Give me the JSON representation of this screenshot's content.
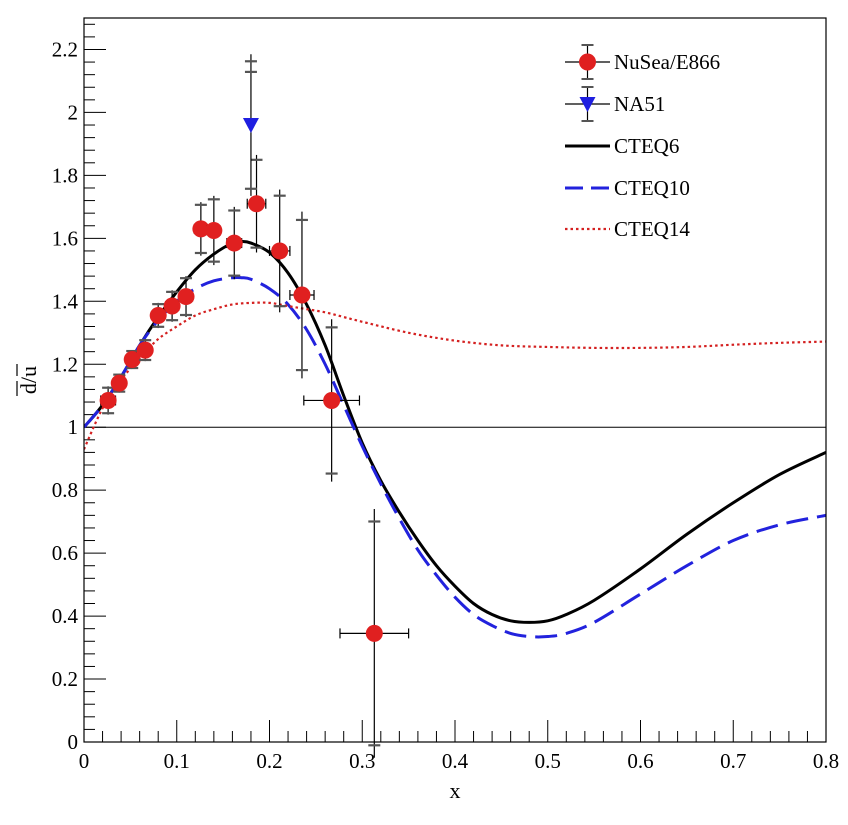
{
  "chart_data": {
    "type": "scatter",
    "title": "",
    "xlabel": "x",
    "ylabel": "d/u",
    "xlim": [
      0,
      0.8
    ],
    "ylim": [
      0,
      2.3
    ],
    "reference_line_y": 1,
    "x_ticks": [
      0,
      0.1,
      0.2,
      0.3,
      0.4,
      0.5,
      0.6,
      0.7,
      0.8
    ],
    "x_tick_labels": [
      "0",
      "0.1",
      "0.2",
      "0.3",
      "0.4",
      "0.5",
      "0.6",
      "0.7",
      "0.8"
    ],
    "y_ticks": [
      0,
      0.2,
      0.4,
      0.6,
      0.8,
      1.0,
      1.2,
      1.4,
      1.6,
      1.8,
      2.0,
      2.2
    ],
    "y_tick_labels": [
      "0",
      "0.2",
      "0.4",
      "0.6",
      "0.8",
      "1",
      "1.2",
      "1.4",
      "1.6",
      "1.8",
      "2",
      "2.2"
    ],
    "legend_position": "top-right",
    "colors": {
      "nusea": "#e02020",
      "na51": "#1f1fe0",
      "cteq6": "#000000",
      "cteq10": "#2222dd",
      "cteq14": "#d42020",
      "errorbar": "#000000",
      "syst": "#555555"
    },
    "series": [
      {
        "name": "NuSea/E866",
        "kind": "points",
        "marker": "circle",
        "color": "#e02020",
        "points": [
          {
            "x": 0.026,
            "y": 1.085,
            "xerr": 0.008,
            "yerr": 0.045
          },
          {
            "x": 0.038,
            "y": 1.14,
            "xerr": 0.005,
            "yerr": 0.03
          },
          {
            "x": 0.052,
            "y": 1.215,
            "xerr": 0.006,
            "yerr": 0.03
          },
          {
            "x": 0.066,
            "y": 1.245,
            "xerr": 0.006,
            "yerr": 0.035
          },
          {
            "x": 0.08,
            "y": 1.355,
            "xerr": 0.006,
            "yerr": 0.04
          },
          {
            "x": 0.095,
            "y": 1.385,
            "xerr": 0.007,
            "yerr": 0.05
          },
          {
            "x": 0.11,
            "y": 1.415,
            "xerr": 0.007,
            "yerr": 0.065
          },
          {
            "x": 0.126,
            "y": 1.63,
            "xerr": 0.007,
            "yerr": 0.085
          },
          {
            "x": 0.14,
            "y": 1.625,
            "xerr": 0.007,
            "yerr": 0.11
          },
          {
            "x": 0.162,
            "y": 1.585,
            "xerr": 0.008,
            "yerr": 0.115
          },
          {
            "x": 0.186,
            "y": 1.71,
            "xerr": 0.01,
            "yerr": 0.155
          },
          {
            "x": 0.211,
            "y": 1.56,
            "xerr": 0.011,
            "yerr": 0.195
          },
          {
            "x": 0.235,
            "y": 1.42,
            "xerr": 0.013,
            "yerr": 0.265
          },
          {
            "x": 0.267,
            "y": 1.085,
            "xerr": 0.03,
            "yerr": 0.258
          },
          {
            "x": 0.313,
            "y": 0.345,
            "xerr": 0.037,
            "yerr": 0.395
          }
        ]
      },
      {
        "name": "NA51",
        "kind": "points",
        "marker": "triangle-down",
        "color": "#1f1fe0",
        "points": [
          {
            "x": 0.18,
            "y": 1.96,
            "xerr": 0.0,
            "yerr": 0.225
          }
        ]
      },
      {
        "name": "CTEQ6",
        "kind": "line",
        "style": "solid",
        "color": "#000000",
        "x": [
          0.0,
          0.02,
          0.04,
          0.06,
          0.08,
          0.1,
          0.12,
          0.14,
          0.16,
          0.17,
          0.18,
          0.2,
          0.22,
          0.24,
          0.26,
          0.28,
          0.3,
          0.32,
          0.34,
          0.36,
          0.38,
          0.4,
          0.42,
          0.44,
          0.46,
          0.48,
          0.5,
          0.52,
          0.55,
          0.6,
          0.65,
          0.7,
          0.75,
          0.8
        ],
        "y": [
          1.0,
          1.07,
          1.16,
          1.26,
          1.35,
          1.43,
          1.5,
          1.55,
          1.585,
          1.59,
          1.585,
          1.555,
          1.49,
          1.39,
          1.26,
          1.1,
          0.95,
          0.83,
          0.73,
          0.64,
          0.56,
          0.495,
          0.44,
          0.405,
          0.385,
          0.38,
          0.385,
          0.405,
          0.45,
          0.55,
          0.66,
          0.76,
          0.85,
          0.92
        ]
      },
      {
        "name": "CTEQ10",
        "kind": "line",
        "style": "dashed",
        "color": "#2222dd",
        "x": [
          0.0,
          0.02,
          0.04,
          0.06,
          0.08,
          0.1,
          0.12,
          0.14,
          0.16,
          0.17,
          0.18,
          0.2,
          0.22,
          0.24,
          0.26,
          0.28,
          0.3,
          0.32,
          0.34,
          0.36,
          0.38,
          0.4,
          0.42,
          0.44,
          0.46,
          0.48,
          0.5,
          0.52,
          0.55,
          0.6,
          0.65,
          0.7,
          0.75,
          0.8
        ],
        "y": [
          1.0,
          1.07,
          1.16,
          1.26,
          1.34,
          1.4,
          1.44,
          1.465,
          1.475,
          1.475,
          1.47,
          1.44,
          1.39,
          1.31,
          1.2,
          1.07,
          0.94,
          0.82,
          0.71,
          0.61,
          0.53,
          0.46,
          0.405,
          0.37,
          0.345,
          0.335,
          0.335,
          0.345,
          0.38,
          0.47,
          0.56,
          0.64,
          0.69,
          0.72
        ]
      },
      {
        "name": "CTEQ14",
        "kind": "line",
        "style": "dotted",
        "color": "#d42020",
        "x": [
          0.0,
          0.02,
          0.04,
          0.06,
          0.08,
          0.1,
          0.12,
          0.14,
          0.16,
          0.18,
          0.2,
          0.22,
          0.24,
          0.26,
          0.28,
          0.3,
          0.35,
          0.4,
          0.45,
          0.5,
          0.55,
          0.6,
          0.65,
          0.7,
          0.75,
          0.8
        ],
        "y": [
          0.93,
          1.06,
          1.15,
          1.22,
          1.28,
          1.32,
          1.355,
          1.375,
          1.39,
          1.395,
          1.395,
          1.385,
          1.375,
          1.365,
          1.35,
          1.335,
          1.3,
          1.275,
          1.26,
          1.255,
          1.252,
          1.252,
          1.255,
          1.262,
          1.268,
          1.272
        ]
      }
    ]
  }
}
